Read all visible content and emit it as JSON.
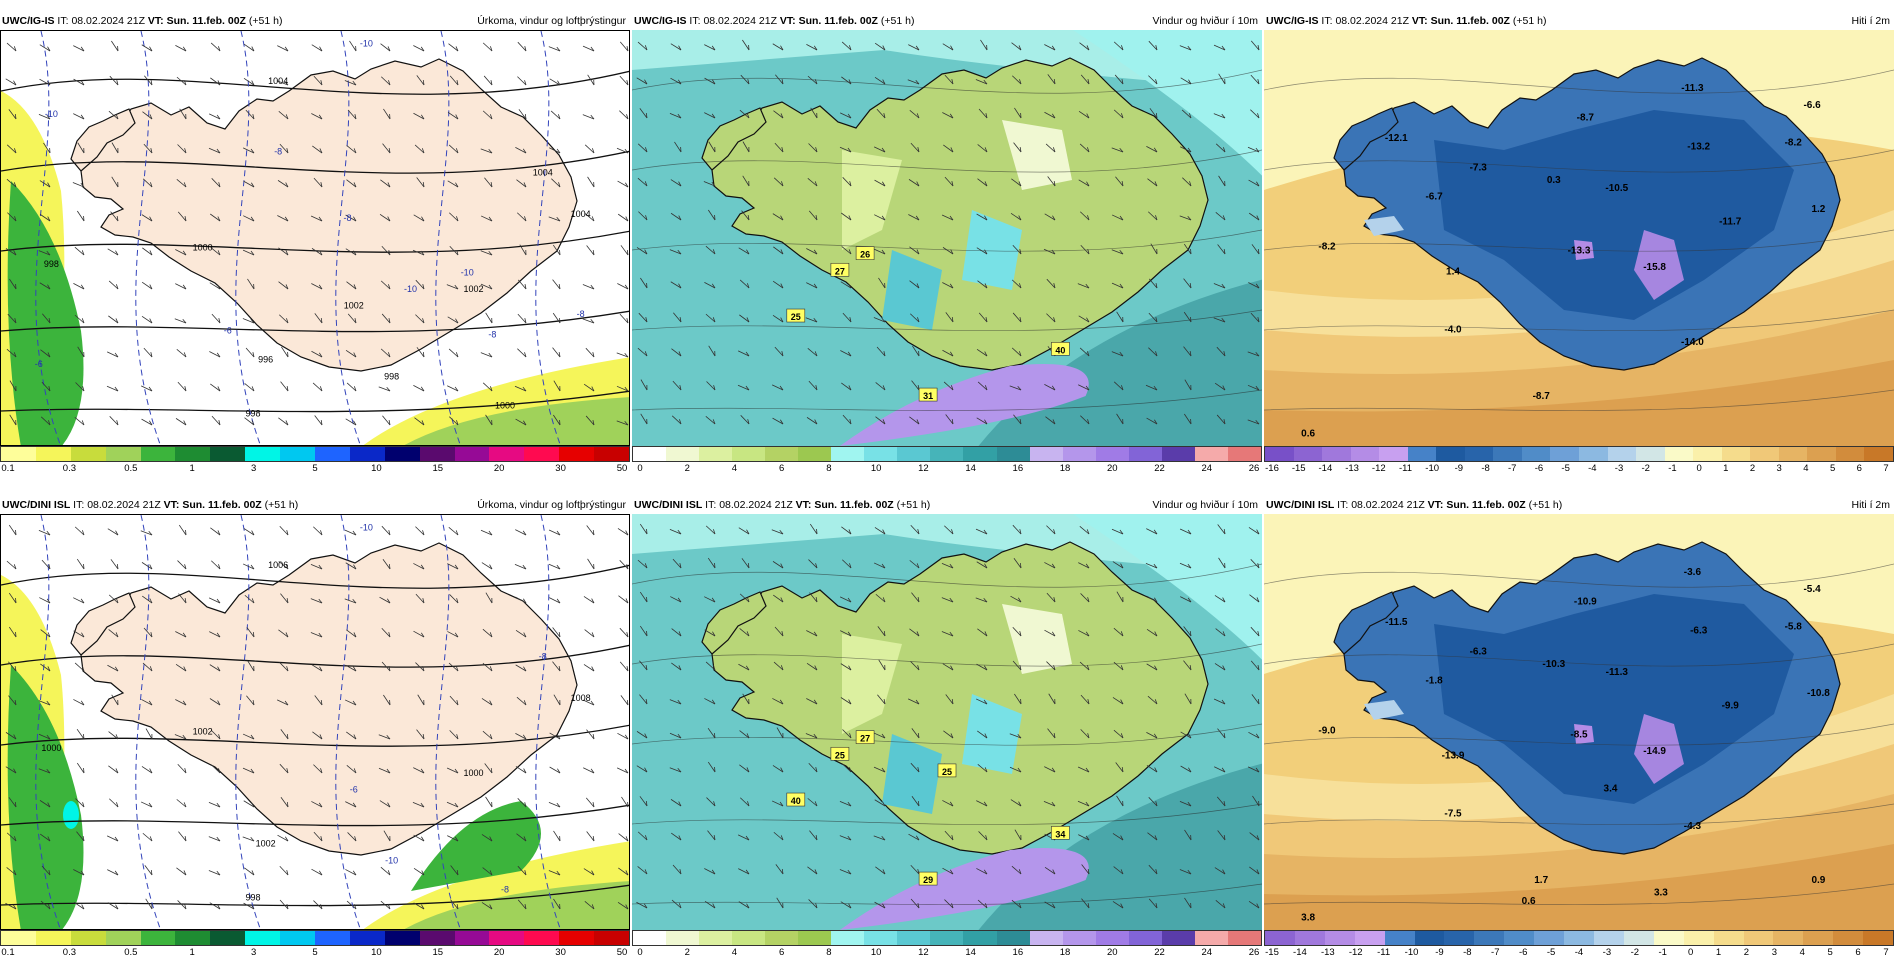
{
  "rows": [
    {
      "row_id": "ig-is",
      "panels": [
        {
          "kind": "precip",
          "model": "UWC/IG-IS",
          "it_label": "IT:",
          "it": "08.02.2024 21Z",
          "vt_label": "VT:",
          "vt": "Sun. 11.feb. 00Z",
          "lead": "(+51 h)",
          "title": "Úrkoma, vindur og loftþrýstingur",
          "labels": [
            "1004",
            "1004",
            "1002",
            "1000",
            "998",
            "996",
            "998",
            "1000",
            "998",
            "1002",
            "1004",
            "-10",
            "-10",
            "-8",
            "-6",
            "-10",
            "-8",
            "-6",
            "-10",
            "-8",
            "-8"
          ],
          "colorbar": {
            "colors": [
              "#fefe9a",
              "#f5f55a",
              "#c8dc3c",
              "#a0d25a",
              "#3cb43c",
              "#1e8c32",
              "#0a5a32",
              "#00f5e6",
              "#00c8f0",
              "#1e64ff",
              "#0a28c8",
              "#00006e",
              "#5a0a6e",
              "#960a96",
              "#e60a82",
              "#ff0a50",
              "#e60000",
              "#c80000"
            ],
            "ticks": [
              "0.1",
              "0.3",
              "0.5",
              "1",
              "3",
              "5",
              "10",
              "15",
              "20",
              "30",
              "50"
            ]
          }
        },
        {
          "kind": "wind",
          "model": "UWC/IG-IS",
          "it_label": "IT:",
          "it": "08.02.2024 21Z",
          "vt_label": "VT:",
          "vt": "Sun. 11.feb. 00Z",
          "lead": "(+51 h)",
          "title": "Vindur og hviður í 10m",
          "labels": [
            "26",
            "27",
            "25",
            "31",
            "40"
          ],
          "colorbar": {
            "colors": [
              "#ffffff",
              "#f0f8d2",
              "#dcf0a0",
              "#c8e682",
              "#b4d264",
              "#9cc850",
              "#a0f5f0",
              "#78e1e6",
              "#5ac8d2",
              "#46b4b9",
              "#32a0a5",
              "#2d8c96",
              "#c8b4f0",
              "#b496eb",
              "#a07be6",
              "#8264d7",
              "#5a3caa",
              "#f5aaaa",
              "#e67878"
            ],
            "ticks": [
              "0",
              "2",
              "4",
              "6",
              "8",
              "10",
              "12",
              "14",
              "16",
              "18",
              "20",
              "22",
              "24",
              "26"
            ]
          }
        },
        {
          "kind": "temp",
          "model": "UWC/IG-IS",
          "it_label": "IT:",
          "it": "08.02.2024 21Z",
          "vt_label": "VT:",
          "vt": "Sun. 11.feb. 00Z",
          "lead": "(+51 h)",
          "title": "Hiti í 2m",
          "labels": [
            "-11.3",
            "-6.6",
            "-12.1",
            "-8.7",
            "-13.2",
            "-8.2",
            "-7.3",
            "0.3",
            "-10.5",
            "-6.7",
            "1.2",
            "-11.7",
            "-8.2",
            "-13.3",
            "1.4",
            "-15.8",
            "-4.0",
            "-14.0",
            "-8.7",
            "0.6"
          ],
          "colorbar": {
            "colors": [
              "#7850c8",
              "#8c64d2",
              "#a078dc",
              "#b48ce6",
              "#c8a0f0",
              "#4682c8",
              "#1e5aa0",
              "#2864aa",
              "#3c78b9",
              "#508cc8",
              "#6ea0d7",
              "#8cb9e1",
              "#b4d2eb",
              "#d2e6e6",
              "#fafac8",
              "#faf0aa",
              "#f5dc8c",
              "#f0c878",
              "#e6b464",
              "#dca050",
              "#d28c3c",
              "#c87828"
            ],
            "ticks": [
              "-16",
              "-15",
              "-14",
              "-13",
              "-12",
              "-11",
              "-10",
              "-9",
              "-8",
              "-7",
              "-6",
              "-5",
              "-4",
              "-3",
              "-2",
              "-1",
              "0",
              "1",
              "2",
              "3",
              "4",
              "5",
              "6",
              "7"
            ]
          }
        }
      ]
    },
    {
      "row_id": "dini",
      "panels": [
        {
          "kind": "precip",
          "model": "UWC/DINI ISL",
          "it_label": "IT:",
          "it": "08.02.2024 21Z",
          "vt_label": "VT:",
          "vt": "Sun. 11.feb. 00Z",
          "lead": "(+51 h)",
          "title": "Úrkoma, vindur og loftþrýstingur",
          "labels": [
            "1006",
            "1008",
            "1000",
            "1002",
            "1000",
            "1002",
            "998",
            "-8",
            "-10",
            "-6",
            "-8",
            "-10"
          ],
          "colorbar": {
            "colors": [
              "#fefe9a",
              "#f5f55a",
              "#c8dc3c",
              "#a0d25a",
              "#3cb43c",
              "#1e8c32",
              "#0a5a32",
              "#00f5e6",
              "#00c8f0",
              "#1e64ff",
              "#0a28c8",
              "#00006e",
              "#5a0a6e",
              "#960a96",
              "#e60a82",
              "#ff0a50",
              "#e60000",
              "#c80000"
            ],
            "ticks": [
              "0.1",
              "0.3",
              "0.5",
              "1",
              "3",
              "5",
              "10",
              "15",
              "20",
              "30",
              "50"
            ]
          }
        },
        {
          "kind": "wind",
          "model": "UWC/DINI ISL",
          "it_label": "IT:",
          "it": "08.02.2024 21Z",
          "vt_label": "VT:",
          "vt": "Sun. 11.feb. 00Z",
          "lead": "(+51 h)",
          "title": "Vindur og hviður í 10m",
          "labels": [
            "27",
            "25",
            "40",
            "29",
            "34",
            "25"
          ],
          "colorbar": {
            "colors": [
              "#ffffff",
              "#f0f8d2",
              "#dcf0a0",
              "#c8e682",
              "#b4d264",
              "#9cc850",
              "#a0f5f0",
              "#78e1e6",
              "#5ac8d2",
              "#46b4b9",
              "#32a0a5",
              "#2d8c96",
              "#c8b4f0",
              "#b496eb",
              "#a07be6",
              "#8264d7",
              "#5a3caa",
              "#f5aaaa",
              "#e67878"
            ],
            "ticks": [
              "0",
              "2",
              "4",
              "6",
              "8",
              "10",
              "12",
              "14",
              "16",
              "18",
              "20",
              "22",
              "24",
              "26"
            ]
          }
        },
        {
          "kind": "temp",
          "model": "UWC/DINI ISL",
          "it_label": "IT:",
          "it": "08.02.2024 21Z",
          "vt_label": "VT:",
          "vt": "Sun. 11.feb. 00Z",
          "lead": "(+51 h)",
          "title": "Hiti í 2m",
          "labels": [
            "-3.6",
            "-5.4",
            "-11.5",
            "-10.9",
            "-6.3",
            "-5.8",
            "-6.3",
            "-10.3",
            "-11.3",
            "-1.8",
            "-10.8",
            "-9.9",
            "-9.0",
            "-8.5",
            "-13.9",
            "-14.9",
            "-7.5",
            "-4.3",
            "1.7",
            "3.8",
            "0.6",
            "3.3",
            "0.9",
            "3.4"
          ],
          "colorbar": {
            "colors": [
              "#8c64d2",
              "#a078dc",
              "#b48ce6",
              "#c8a0f0",
              "#4682c8",
              "#1e5aa0",
              "#2864aa",
              "#3c78b9",
              "#508cc8",
              "#6ea0d7",
              "#8cb9e1",
              "#b4d2eb",
              "#d2e6e6",
              "#fafac8",
              "#faf0aa",
              "#f5dc8c",
              "#f0c878",
              "#e6b464",
              "#dca050",
              "#d28c3c",
              "#c87828"
            ],
            "ticks": [
              "-15",
              "-14",
              "-13",
              "-12",
              "-11",
              "-10",
              "-9",
              "-8",
              "-7",
              "-6",
              "-5",
              "-4",
              "-3",
              "-2",
              "-1",
              "0",
              "1",
              "2",
              "3",
              "4",
              "5",
              "6",
              "7"
            ]
          }
        }
      ]
    }
  ]
}
